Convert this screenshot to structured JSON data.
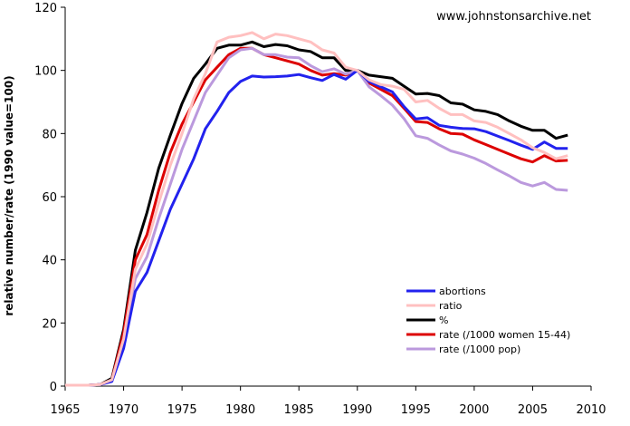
{
  "chart_data": {
    "type": "line",
    "title": "",
    "xlabel": "",
    "ylabel": "relative number/rate (1990 value=100)",
    "xlim": [
      1965,
      2010
    ],
    "ylim": [
      0,
      120
    ],
    "xticks": [
      1965,
      1970,
      1975,
      1980,
      1985,
      1990,
      1995,
      2000,
      2005,
      2010
    ],
    "yticks": [
      0,
      20,
      40,
      60,
      80,
      100,
      120
    ],
    "grid": false,
    "legend_position": "bottom-right",
    "annotation": "www.johnstonsarchive.net",
    "x": [
      1965,
      1966,
      1967,
      1968,
      1969,
      1970,
      1971,
      1972,
      1973,
      1974,
      1975,
      1976,
      1977,
      1978,
      1979,
      1980,
      1981,
      1982,
      1983,
      1984,
      1985,
      1986,
      1987,
      1988,
      1989,
      1990,
      1991,
      1992,
      1993,
      1994,
      1995,
      1996,
      1997,
      1998,
      1999,
      2000,
      2001,
      2002,
      2003,
      2004,
      2005,
      2006,
      2007,
      2008
    ],
    "series": [
      {
        "name": "abortions",
        "color": "#2222ee",
        "values": [
          0.3,
          0.3,
          0.3,
          0.5,
          1.5,
          12,
          30,
          36,
          46,
          56,
          64,
          72,
          81.5,
          87,
          93,
          96.5,
          98.2,
          97.9,
          98.0,
          98.2,
          98.7,
          97.7,
          96.8,
          98.7,
          97.2,
          100,
          96.5,
          94.8,
          93.2,
          88.5,
          84.6,
          85.0,
          82.6,
          82.0,
          81.6,
          81.5,
          80.6,
          79.2,
          77.8,
          76.3,
          75.0,
          77.3,
          75.3,
          75.3
        ]
      },
      {
        "name": "ratio",
        "color": "#ffc0c0",
        "values": [
          0.3,
          0.3,
          0.3,
          0.5,
          2,
          15,
          37,
          45,
          58,
          70,
          80,
          91,
          99,
          109,
          110.5,
          111,
          112,
          110,
          111.5,
          111,
          110,
          109,
          106.5,
          105.5,
          101,
          100,
          97,
          95.5,
          95,
          94,
          90,
          90.5,
          88,
          86,
          86,
          84,
          83.5,
          82,
          80,
          78,
          75.5,
          74,
          72,
          73
        ]
      },
      {
        "name": "%",
        "color": "#000000",
        "values": [
          0.3,
          0.3,
          0.3,
          0.5,
          2.5,
          18,
          43,
          55,
          69,
          79.5,
          89.5,
          97.5,
          102,
          107,
          108,
          108,
          109,
          107.5,
          108.2,
          107.8,
          106.5,
          106,
          104,
          104,
          100,
          100,
          98.5,
          98,
          97.5,
          95,
          92.5,
          92.7,
          92,
          89.7,
          89.3,
          87.5,
          87,
          86,
          84,
          82.3,
          81,
          81,
          78.5,
          79.5
        ]
      },
      {
        "name": "rate (/1000 women 15-44)",
        "color": "#dd0000",
        "values": [
          0.3,
          0.3,
          0.3,
          0.5,
          2,
          17,
          40,
          48,
          62,
          74,
          83,
          90,
          97,
          101,
          105,
          107,
          107,
          105,
          104,
          103,
          102,
          100,
          98.5,
          99,
          98.5,
          100,
          96,
          94,
          92,
          88,
          83.8,
          83.5,
          81.5,
          80,
          79.8,
          78,
          76.5,
          75,
          73.5,
          72,
          71,
          73,
          71.3,
          71.5
        ]
      },
      {
        "name": "rate (/1000 pop)",
        "color": "#bb99dd",
        "values": [
          0.3,
          0.3,
          0.3,
          0.5,
          1.5,
          14,
          34,
          41,
          53,
          64,
          75,
          84,
          93,
          98.5,
          104,
          106.5,
          107,
          105,
          105,
          104.2,
          104,
          101.5,
          99.6,
          100.5,
          98.8,
          100,
          94.8,
          92,
          89,
          84.7,
          79.3,
          78.5,
          76.4,
          74.5,
          73.5,
          72.2,
          70.5,
          68.5,
          66.6,
          64.5,
          63.4,
          64.5,
          62.3,
          62
        ]
      }
    ]
  }
}
